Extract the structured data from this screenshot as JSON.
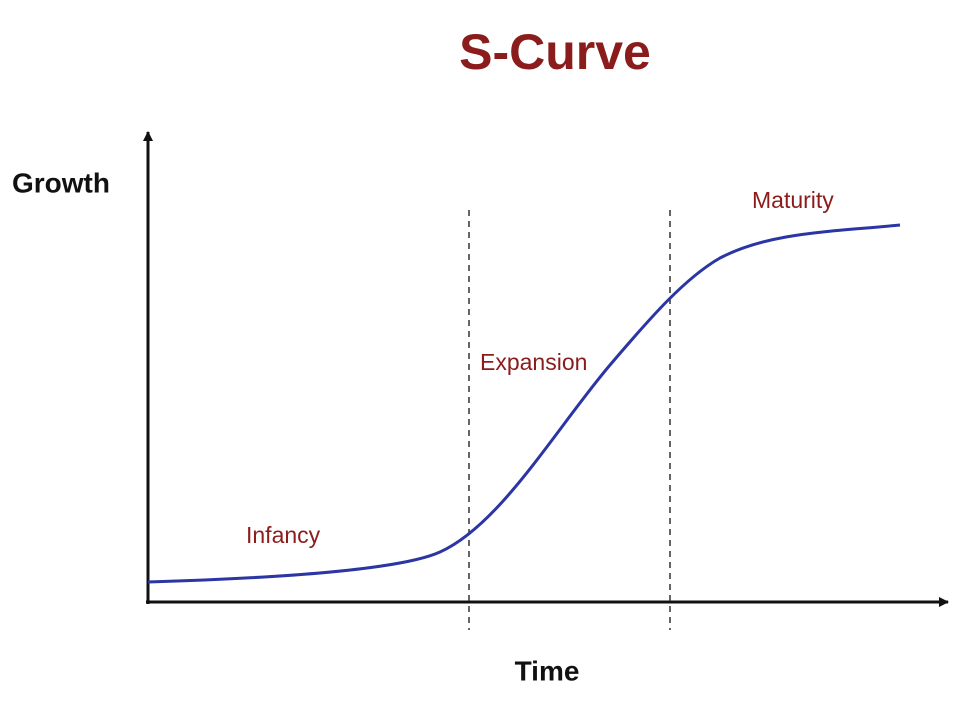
{
  "title": "S-Curve",
  "axes": {
    "y_label": "Growth",
    "x_label": "Time"
  },
  "phases": [
    {
      "label": "Infancy"
    },
    {
      "label": "Expansion"
    },
    {
      "label": "Maturity"
    }
  ]
}
